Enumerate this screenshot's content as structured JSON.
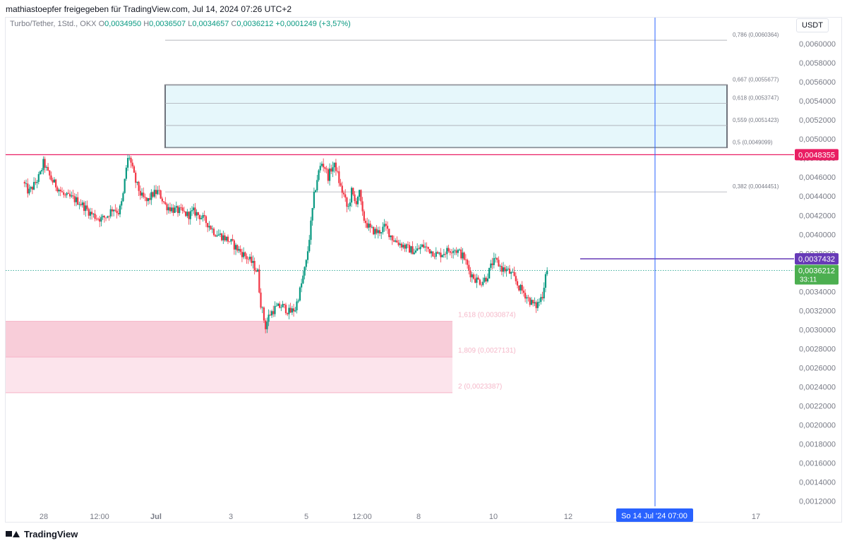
{
  "header": {
    "publisher": "mathiastoepfer freigegeben für TradingView.com, Jul 14, 2024 07:26 UTC+2"
  },
  "legend": {
    "symbol": "Turbo/Tether, 1Std., OKX",
    "o_label": "O",
    "o": "0,0034950",
    "h_label": "H",
    "h": "0,0036507",
    "l_label": "L",
    "l": "0,0034657",
    "c_label": "C",
    "c": "0,0036212",
    "change": "+0,0001249 (+3,57%)"
  },
  "currency": "USDT",
  "footer": {
    "brand": "TradingView"
  },
  "colors": {
    "up": "#089981",
    "down": "#f23645",
    "resistance": "#e91e63",
    "purple": "#673ab7",
    "crosshair": "#2962ff"
  },
  "chart_data": {
    "type": "candlestick",
    "ylim": [
      0.00105,
      0.0063
    ],
    "y_ticks": [
      "0,0060000",
      "0,0058000",
      "0,0056000",
      "0,0054000",
      "0,0052000",
      "0,0050000",
      "0,0048000",
      "0,0046000",
      "0,0044000",
      "0,0042000",
      "0,0040000",
      "0,0038000",
      "0,0036000",
      "0,0034000",
      "0,0032000",
      "0,0030000",
      "0,0028000",
      "0,0026000",
      "0,0024000",
      "0,0022000",
      "0,0020000",
      "0,0018000",
      "0,0016000",
      "0,0014000",
      "0,0012000"
    ],
    "y_tick_values": [
      0.006,
      0.0058,
      0.0056,
      0.0054,
      0.0052,
      0.005,
      0.0048,
      0.0046,
      0.0044,
      0.0042,
      0.004,
      0.0038,
      0.0036,
      0.0034,
      0.0032,
      0.003,
      0.0028,
      0.0026,
      0.0024,
      0.0022,
      0.002,
      0.0018,
      0.0016,
      0.0014,
      0.0012
    ],
    "x_ticks": [
      {
        "label": "28",
        "d": -3.5
      },
      {
        "label": "12:00",
        "d": -2.5
      },
      {
        "label": "Jul",
        "d": 0
      },
      {
        "label": "3",
        "d": 1
      },
      {
        "label": "5",
        "d": 3
      },
      {
        "label": "12:00",
        "d": 3.5
      },
      {
        "label": "8",
        "d": 4.5
      },
      {
        "label": "10",
        "d": 6.5
      },
      {
        "label": "12",
        "d": 8.5
      },
      {
        "label": "17",
        "d": 13.5
      }
    ],
    "x_label_days": {
      "28": -3,
      "12:00 (1)": -2.5,
      "Jul": 0,
      "3": 2,
      "5": 4,
      "12:00 (2)": 4.5,
      "8": 7,
      "10": 9,
      "12": 11,
      "17": 16
    },
    "x_domain_days": [
      -3.5,
      16.8
    ],
    "price_path": [
      [
        -3.5,
        0.00455
      ],
      [
        -3.35,
        0.00444
      ],
      [
        -3.2,
        0.00452
      ],
      [
        -3.05,
        0.00462
      ],
      [
        -2.95,
        0.00476
      ],
      [
        -2.85,
        0.00465
      ],
      [
        -2.72,
        0.00456
      ],
      [
        -2.55,
        0.00448
      ],
      [
        -2.4,
        0.0044
      ],
      [
        -2.2,
        0.00438
      ],
      [
        -2.0,
        0.00434
      ],
      [
        -1.85,
        0.00428
      ],
      [
        -1.7,
        0.00422
      ],
      [
        -1.55,
        0.00418
      ],
      [
        -1.4,
        0.00416
      ],
      [
        -1.25,
        0.0042
      ],
      [
        -1.1,
        0.00428
      ],
      [
        -0.95,
        0.00423
      ],
      [
        -0.85,
        0.00436
      ],
      [
        -0.75,
        0.0047
      ],
      [
        -0.68,
        0.00484
      ],
      [
        -0.6,
        0.0047
      ],
      [
        -0.5,
        0.00455
      ],
      [
        -0.35,
        0.0044
      ],
      [
        -0.2,
        0.00434
      ],
      [
        -0.05,
        0.00442
      ],
      [
        0.1,
        0.00445
      ],
      [
        0.3,
        0.0043
      ],
      [
        0.5,
        0.00426
      ],
      [
        0.7,
        0.00424
      ],
      [
        0.9,
        0.0042
      ],
      [
        1.05,
        0.00424
      ],
      [
        1.25,
        0.00418
      ],
      [
        1.45,
        0.0041
      ],
      [
        1.6,
        0.00402
      ],
      [
        1.8,
        0.00398
      ],
      [
        2.0,
        0.00393
      ],
      [
        2.2,
        0.00385
      ],
      [
        2.4,
        0.00378
      ],
      [
        2.6,
        0.0037
      ],
      [
        2.75,
        0.0036
      ],
      [
        2.82,
        0.0033
      ],
      [
        2.9,
        0.00315
      ],
      [
        2.95,
        0.00302
      ],
      [
        3.05,
        0.00315
      ],
      [
        3.2,
        0.00322
      ],
      [
        3.4,
        0.00325
      ],
      [
        3.6,
        0.00318
      ],
      [
        3.75,
        0.00322
      ],
      [
        3.9,
        0.00345
      ],
      [
        4.05,
        0.00372
      ],
      [
        4.15,
        0.00405
      ],
      [
        4.25,
        0.0044
      ],
      [
        4.35,
        0.00462
      ],
      [
        4.45,
        0.00475
      ],
      [
        4.55,
        0.0047
      ],
      [
        4.62,
        0.0046
      ],
      [
        4.72,
        0.0047
      ],
      [
        4.82,
        0.00472
      ],
      [
        4.95,
        0.0045
      ],
      [
        5.05,
        0.0044
      ],
      [
        5.15,
        0.00425
      ],
      [
        5.25,
        0.00445
      ],
      [
        5.35,
        0.00432
      ],
      [
        5.45,
        0.00445
      ],
      [
        5.55,
        0.00418
      ],
      [
        5.75,
        0.00405
      ],
      [
        5.95,
        0.00402
      ],
      [
        6.15,
        0.00408
      ],
      [
        6.35,
        0.00395
      ],
      [
        6.55,
        0.0039
      ],
      [
        6.75,
        0.00385
      ],
      [
        6.95,
        0.00382
      ],
      [
        7.15,
        0.00388
      ],
      [
        7.35,
        0.00383
      ],
      [
        7.55,
        0.00378
      ],
      [
        7.75,
        0.00382
      ],
      [
        7.95,
        0.00385
      ],
      [
        8.1,
        0.00382
      ],
      [
        8.25,
        0.00375
      ],
      [
        8.4,
        0.0036
      ],
      [
        8.55,
        0.00353
      ],
      [
        8.7,
        0.0035
      ],
      [
        8.85,
        0.00355
      ],
      [
        9.0,
        0.0037
      ],
      [
        9.1,
        0.00372
      ],
      [
        9.25,
        0.00364
      ],
      [
        9.4,
        0.00362
      ],
      [
        9.55,
        0.00356
      ],
      [
        9.7,
        0.00345
      ],
      [
        9.85,
        0.00338
      ],
      [
        10.0,
        0.0033
      ],
      [
        10.15,
        0.00324
      ],
      [
        10.25,
        0.0033
      ],
      [
        10.35,
        0.00338
      ],
      [
        10.42,
        0.00362
      ]
    ],
    "levels": {
      "resistance": {
        "value": 0.0048355,
        "label": "0,0048355"
      },
      "purple": {
        "value": 0.0037432,
        "label": "0,0037432"
      },
      "current": {
        "value": 0.0036212,
        "label": "0,0036212",
        "countdown": "33:11"
      }
    },
    "fib_up": [
      {
        "label": "0,786 (0,0060364)",
        "value": 0.0060364
      },
      {
        "label": "0,667 (0,0055677)",
        "value": 0.0055677
      },
      {
        "label": "0,618 (0,0053747)",
        "value": 0.0053747
      },
      {
        "label": "0,559 (0,0051423)",
        "value": 0.0051423
      },
      {
        "label": "0,5 (0,0049099)",
        "value": 0.0049099
      },
      {
        "label": "0,382 (0,0044451)",
        "value": 0.0044451
      }
    ],
    "fib_down": [
      {
        "label": "1,618 (0,0030874)",
        "value": 0.0030874
      },
      {
        "label": "1,809 (0,0027131)",
        "value": 0.0027131
      },
      {
        "label": "2 (0,0023387)",
        "value": 0.0023387
      }
    ],
    "crosshair_label": "So 14 Jul '24   07:00"
  }
}
